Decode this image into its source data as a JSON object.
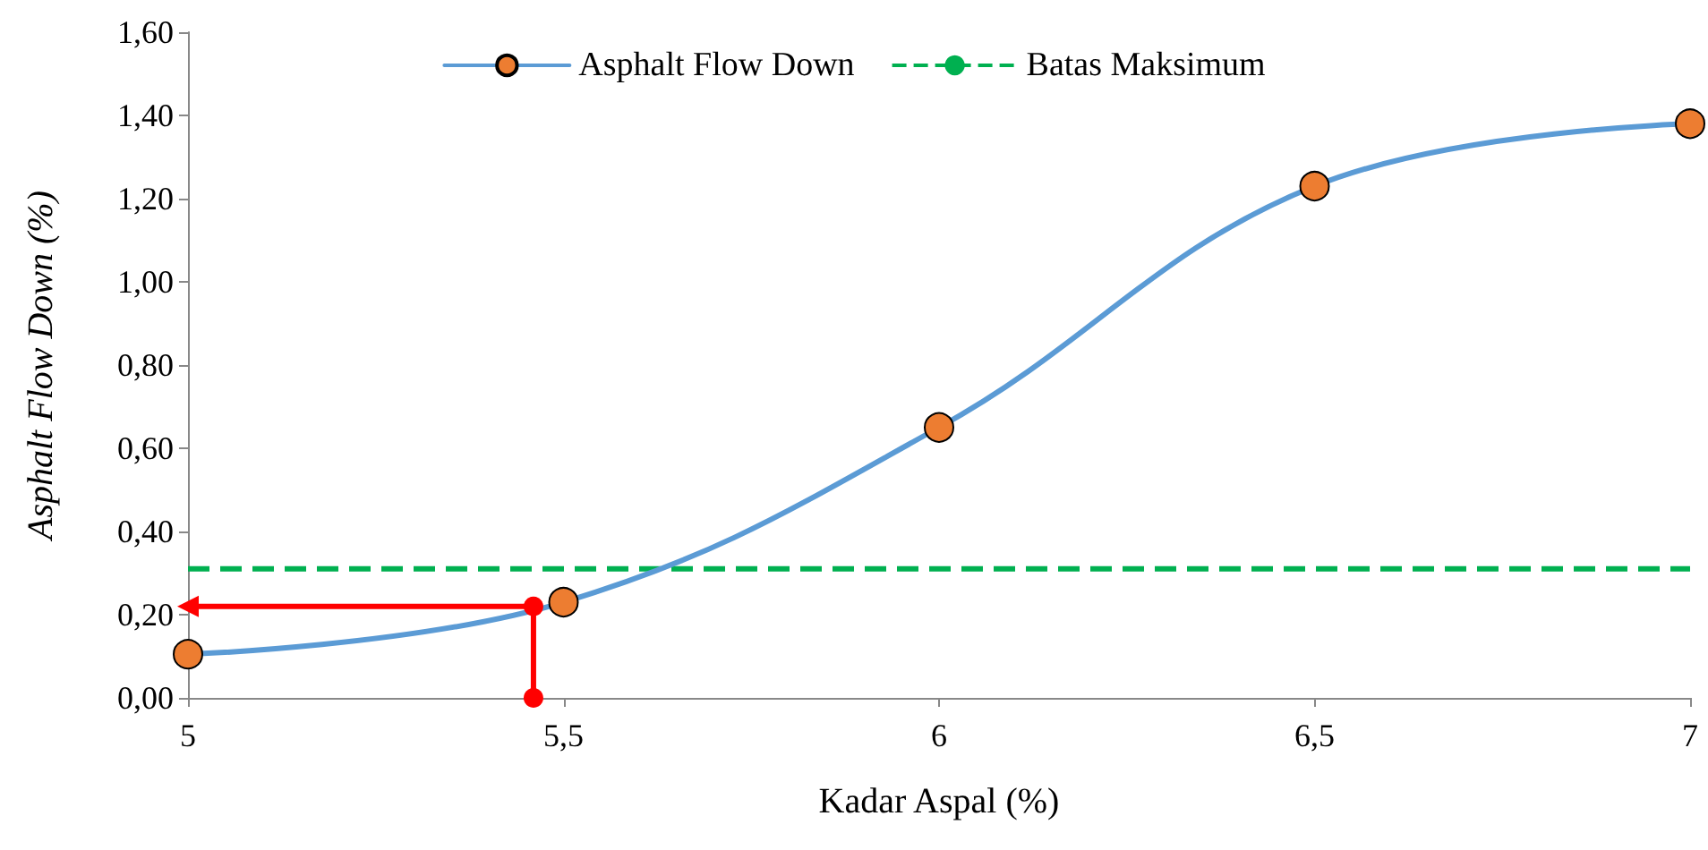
{
  "chart_data": {
    "type": "line",
    "xlabel": "Kadar Aspal (%)",
    "ylabel": "Asphalt Flow Down (%)",
    "xlim": [
      5,
      7
    ],
    "xticks": [
      5,
      {
        "value": 5.5,
        "label": "5,5"
      },
      6,
      {
        "value": 6.5,
        "label": "6,5"
      },
      7
    ],
    "ylim": [
      0,
      1.6
    ],
    "yticks": [
      {
        "value": 0,
        "label": "0,00"
      },
      {
        "value": 0.2,
        "label": "0,20"
      },
      {
        "value": 0.4,
        "label": "0,40"
      },
      {
        "value": 0.6,
        "label": "0,60"
      },
      {
        "value": 0.8,
        "label": "0,80"
      },
      {
        "value": 1.0,
        "label": "1,00"
      },
      {
        "value": 1.2,
        "label": "1,20"
      },
      {
        "value": 1.4,
        "label": "1,40"
      },
      {
        "value": 1.6,
        "label": "1,60"
      }
    ],
    "grid": false,
    "legend": "top",
    "series": [
      {
        "name": "Asphalt Flow Down",
        "color": "#5b9bd5",
        "x": [
          5,
          5.5,
          6,
          6.5,
          7
        ],
        "values": [
          0.105,
          0.23,
          0.65,
          1.23,
          1.38
        ],
        "marker": "circle",
        "line_style": "solid"
      },
      {
        "color": "#ff0000",
        "x": [
          5.46,
          5.46,
          5
        ],
        "values": [
          0,
          0.22,
          0.22
        ],
        "marker": "circle",
        "line_style": "solid"
      }
    ],
    "ref_lines": [
      {
        "axis": "y",
        "value": 0.31,
        "label": "Batas Maksimum",
        "color": "#00b050",
        "line_style": "dashed"
      }
    ]
  }
}
